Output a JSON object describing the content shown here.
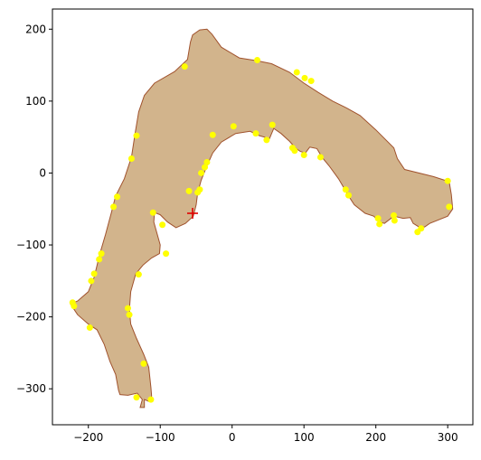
{
  "chart_data": {
    "type": "scatter",
    "title": "",
    "xlabel": "",
    "ylabel": "",
    "xlim": [
      -250,
      335
    ],
    "ylim": [
      -350,
      228
    ],
    "x_ticks": [
      -200,
      -100,
      0,
      100,
      200,
      300
    ],
    "y_ticks": [
      -300,
      -200,
      -100,
      0,
      100,
      200
    ],
    "x_tick_labels": [
      "−200",
      "−100",
      "0",
      "100",
      "200",
      "300"
    ],
    "y_tick_labels": [
      "−300",
      "−200",
      "−100",
      "0",
      "100",
      "200"
    ],
    "grid": false,
    "legend": "none",
    "region": {
      "name": "",
      "fill": "#d2b48c",
      "edge": "#a0522d",
      "polygon": [
        [
          -122,
          -326
        ],
        [
          -122,
          -315
        ],
        [
          -115,
          -318
        ],
        [
          -112,
          -310
        ],
        [
          -113,
          -298
        ],
        [
          -116,
          -270
        ],
        [
          -123,
          -252
        ],
        [
          -133,
          -230
        ],
        [
          -141,
          -210
        ],
        [
          -143,
          -190
        ],
        [
          -141,
          -165
        ],
        [
          -134,
          -140
        ],
        [
          -124,
          -128
        ],
        [
          -112,
          -118
        ],
        [
          -101,
          -112
        ],
        [
          -100,
          -100
        ],
        [
          -104,
          -86
        ],
        [
          -109,
          -68
        ],
        [
          -108,
          -55
        ],
        [
          -100,
          -58
        ],
        [
          -90,
          -68
        ],
        [
          -78,
          -76
        ],
        [
          -65,
          -70
        ],
        [
          -54,
          -60
        ],
        [
          -50,
          -44
        ],
        [
          -48,
          -28
        ],
        [
          -43,
          -10
        ],
        [
          -35,
          10
        ],
        [
          -27,
          28
        ],
        [
          -15,
          43
        ],
        [
          5,
          55
        ],
        [
          25,
          58
        ],
        [
          38,
          52
        ],
        [
          52,
          48
        ],
        [
          58,
          62
        ],
        [
          68,
          55
        ],
        [
          80,
          44
        ],
        [
          88,
          35
        ],
        [
          95,
          30
        ],
        [
          102,
          28
        ],
        [
          108,
          36
        ],
        [
          118,
          34
        ],
        [
          125,
          22
        ],
        [
          135,
          10
        ],
        [
          148,
          -8
        ],
        [
          158,
          -25
        ],
        [
          162,
          -32
        ],
        [
          170,
          -44
        ],
        [
          185,
          -56
        ],
        [
          197,
          -60
        ],
        [
          205,
          -68
        ],
        [
          212,
          -70
        ],
        [
          225,
          -60
        ],
        [
          238,
          -63
        ],
        [
          248,
          -62
        ],
        [
          252,
          -70
        ],
        [
          260,
          -75
        ],
        [
          268,
          -75
        ],
        [
          275,
          -70
        ],
        [
          300,
          -60
        ],
        [
          307,
          -50
        ],
        [
          305,
          -30
        ],
        [
          302,
          -12
        ],
        [
          280,
          -5
        ],
        [
          240,
          5
        ],
        [
          230,
          20
        ],
        [
          225,
          35
        ],
        [
          200,
          60
        ],
        [
          178,
          80
        ],
        [
          160,
          90
        ],
        [
          140,
          100
        ],
        [
          120,
          112
        ],
        [
          100,
          125
        ],
        [
          80,
          140
        ],
        [
          55,
          152
        ],
        [
          35,
          156
        ],
        [
          10,
          160
        ],
        [
          -15,
          175
        ],
        [
          -28,
          193
        ],
        [
          -35,
          200
        ],
        [
          -45,
          199
        ],
        [
          -55,
          192
        ],
        [
          -58,
          182
        ],
        [
          -62,
          158
        ],
        [
          -80,
          141
        ],
        [
          -108,
          125
        ],
        [
          -122,
          108
        ],
        [
          -130,
          85
        ],
        [
          -135,
          55
        ],
        [
          -140,
          22
        ],
        [
          -150,
          -8
        ],
        [
          -162,
          -32
        ],
        [
          -168,
          -55
        ],
        [
          -176,
          -85
        ],
        [
          -184,
          -112
        ],
        [
          -192,
          -145
        ],
        [
          -200,
          -165
        ],
        [
          -215,
          -178
        ],
        [
          -225,
          -182
        ],
        [
          -215,
          -197
        ],
        [
          -200,
          -210
        ],
        [
          -188,
          -218
        ],
        [
          -178,
          -238
        ],
        [
          -170,
          -262
        ],
        [
          -162,
          -280
        ],
        [
          -158,
          -302
        ],
        [
          -156,
          -308
        ],
        [
          -145,
          -309
        ],
        [
          -132,
          -306
        ],
        [
          -125,
          -315
        ],
        [
          -128,
          -326
        ]
      ]
    },
    "series": [
      {
        "name": "",
        "color": "#ffff00",
        "marker": "circle",
        "points": [
          [
            -222,
            -180
          ],
          [
            -220,
            -185
          ],
          [
            -198,
            -215
          ],
          [
            -196,
            -150
          ],
          [
            -192,
            -140
          ],
          [
            -185,
            -120
          ],
          [
            -182,
            -112
          ],
          [
            -165,
            -47
          ],
          [
            -160,
            -33
          ],
          [
            -140,
            20
          ],
          [
            -133,
            52
          ],
          [
            -66,
            148
          ],
          [
            35,
            157
          ],
          [
            90,
            140
          ],
          [
            101,
            132
          ],
          [
            110,
            128
          ],
          [
            -145,
            -188
          ],
          [
            -143,
            -197
          ],
          [
            -130,
            -141
          ],
          [
            -123,
            -265
          ],
          [
            -133,
            -312
          ],
          [
            -113,
            -315
          ],
          [
            -92,
            -112
          ],
          [
            -97,
            -72
          ],
          [
            -110,
            -55
          ],
          [
            -60,
            -25
          ],
          [
            -48,
            -27
          ],
          [
            -45,
            -23
          ],
          [
            -43,
            0
          ],
          [
            -38,
            8
          ],
          [
            -35,
            15
          ],
          [
            -27,
            53
          ],
          [
            2,
            65
          ],
          [
            33,
            55
          ],
          [
            48,
            46
          ],
          [
            56,
            67
          ],
          [
            84,
            35
          ],
          [
            87,
            31
          ],
          [
            100,
            25
          ],
          [
            123,
            22
          ],
          [
            158,
            -23
          ],
          [
            162,
            -31
          ],
          [
            203,
            -63
          ],
          [
            205,
            -71
          ],
          [
            225,
            -59
          ],
          [
            226,
            -66
          ],
          [
            258,
            -82
          ],
          [
            263,
            -77
          ],
          [
            300,
            -11
          ],
          [
            302,
            -47
          ]
        ]
      },
      {
        "name": "",
        "color": "#e00000",
        "marker": "plus",
        "points": [
          [
            -55,
            -56
          ]
        ]
      }
    ]
  }
}
